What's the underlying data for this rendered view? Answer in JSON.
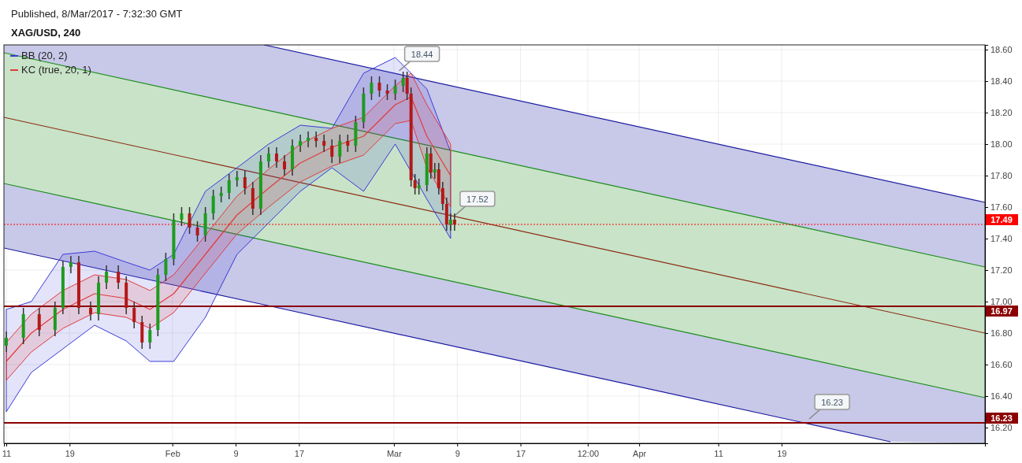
{
  "chart_data": {
    "type": "candlestick",
    "title": "XAG/USD, 240",
    "annotations": [
      "Published, 8/Mar/2017 - 7:32:30 GMT",
      {
        "text": "18.44",
        "x": "2017-03-01T04:00",
        "y": 18.44
      },
      {
        "text": "17.52",
        "x": "2017-03-08T04:00",
        "y": 17.52
      },
      {
        "text": "16.23",
        "x": "2017-04-22T00:00",
        "y": 16.23
      }
    ],
    "x": [
      "2017-01-11T00:00",
      "2017-01-13T04:00",
      "2017-01-15T04:00",
      "2017-01-17T04:00",
      "2017-01-18T04:00",
      "2017-01-19T04:00",
      "2017-01-20T04:00",
      "2017-01-21T16:00",
      "2017-01-22T16:00",
      "2017-01-23T16:00",
      "2017-01-25T04:00",
      "2017-01-26T04:00",
      "2017-01-27T04:00",
      "2017-01-28T04:00",
      "2017-01-29T04:00",
      "2017-01-30T04:00",
      "2017-01-31T04:00",
      "2017-02-01T04:00",
      "2017-02-02T04:00",
      "2017-02-03T04:00",
      "2017-02-04T04:00",
      "2017-02-05T04:00",
      "2017-02-06T04:00",
      "2017-02-07T04:00",
      "2017-02-08T04:00",
      "2017-02-09T04:00",
      "2017-02-10T04:00",
      "2017-02-11T04:00",
      "2017-02-12T04:00",
      "2017-02-13T04:00",
      "2017-02-14T04:00",
      "2017-02-15T04:00",
      "2017-02-16T04:00",
      "2017-02-17T04:00",
      "2017-02-18T04:00",
      "2017-02-19T04:00",
      "2017-02-20T04:00",
      "2017-02-21T04:00",
      "2017-02-22T04:00",
      "2017-02-23T04:00",
      "2017-02-24T04:00",
      "2017-02-25T04:00",
      "2017-02-26T04:00",
      "2017-02-27T04:00",
      "2017-02-28T04:00",
      "2017-03-01T04:00",
      "2017-03-02T04:00",
      "2017-03-02T16:00",
      "2017-03-03T04:00",
      "2017-03-03T16:00",
      "2017-03-04T04:00",
      "2017-03-05T04:00",
      "2017-03-05T16:00",
      "2017-03-06T04:00",
      "2017-03-06T16:00",
      "2017-03-07T04:00",
      "2017-03-07T16:00",
      "2017-03-08T04:00",
      "2017-03-08T16:00"
    ],
    "ohlc": [
      [
        16.72,
        16.81,
        16.68,
        16.77
      ],
      [
        16.77,
        16.96,
        16.73,
        16.92
      ],
      [
        16.92,
        16.96,
        16.78,
        16.82
      ],
      [
        16.82,
        17.0,
        16.78,
        16.96
      ],
      [
        16.96,
        17.26,
        16.92,
        17.22
      ],
      [
        17.22,
        17.29,
        17.18,
        17.25
      ],
      [
        17.25,
        17.29,
        16.92,
        16.96
      ],
      [
        16.96,
        17.0,
        16.88,
        16.92
      ],
      [
        16.92,
        17.16,
        16.88,
        17.12
      ],
      [
        17.12,
        17.23,
        17.08,
        17.19
      ],
      [
        17.19,
        17.23,
        17.08,
        17.12
      ],
      [
        17.12,
        17.16,
        16.92,
        16.96
      ],
      [
        16.96,
        17.0,
        16.83,
        16.87
      ],
      [
        16.87,
        16.91,
        16.7,
        16.74
      ],
      [
        16.74,
        16.86,
        16.7,
        16.82
      ],
      [
        16.82,
        17.21,
        16.78,
        17.17
      ],
      [
        17.17,
        17.31,
        17.13,
        17.27
      ],
      [
        17.27,
        17.56,
        17.23,
        17.52
      ],
      [
        17.52,
        17.6,
        17.48,
        17.56
      ],
      [
        17.56,
        17.6,
        17.43,
        17.47
      ],
      [
        17.47,
        17.51,
        17.38,
        17.42
      ],
      [
        17.42,
        17.6,
        17.38,
        17.56
      ],
      [
        17.56,
        17.71,
        17.52,
        17.67
      ],
      [
        17.67,
        17.73,
        17.63,
        17.69
      ],
      [
        17.69,
        17.81,
        17.65,
        17.77
      ],
      [
        17.77,
        17.83,
        17.73,
        17.79
      ],
      [
        17.79,
        17.83,
        17.68,
        17.72
      ],
      [
        17.72,
        17.76,
        17.55,
        17.59
      ],
      [
        17.59,
        17.93,
        17.55,
        17.89
      ],
      [
        17.89,
        17.98,
        17.85,
        17.94
      ],
      [
        17.94,
        17.98,
        17.85,
        17.89
      ],
      [
        17.89,
        17.93,
        17.8,
        17.84
      ],
      [
        17.84,
        18.03,
        17.8,
        17.99
      ],
      [
        17.99,
        18.06,
        17.95,
        18.02
      ],
      [
        18.02,
        18.08,
        17.98,
        18.04
      ],
      [
        18.04,
        18.08,
        17.98,
        18.02
      ],
      [
        18.02,
        18.06,
        17.95,
        17.99
      ],
      [
        17.99,
        18.03,
        17.88,
        17.92
      ],
      [
        17.92,
        18.06,
        17.88,
        18.02
      ],
      [
        18.02,
        18.06,
        17.95,
        17.99
      ],
      [
        17.99,
        18.18,
        17.95,
        18.14
      ],
      [
        18.14,
        18.36,
        18.1,
        18.32
      ],
      [
        18.32,
        18.43,
        18.28,
        18.39
      ],
      [
        18.39,
        18.43,
        18.3,
        18.34
      ],
      [
        18.34,
        18.38,
        18.28,
        18.32
      ],
      [
        18.32,
        18.41,
        18.28,
        18.37
      ],
      [
        18.37,
        18.46,
        18.33,
        18.42
      ],
      [
        18.42,
        18.46,
        18.28,
        18.32
      ],
      [
        18.32,
        18.36,
        17.73,
        17.77
      ],
      [
        17.77,
        17.81,
        17.68,
        17.72
      ],
      [
        17.72,
        17.78,
        17.68,
        17.74
      ],
      [
        17.74,
        17.98,
        17.7,
        17.94
      ],
      [
        17.94,
        17.98,
        17.78,
        17.82
      ],
      [
        17.82,
        17.88,
        17.78,
        17.84
      ],
      [
        17.84,
        17.88,
        17.68,
        17.72
      ],
      [
        17.72,
        17.76,
        17.58,
        17.62
      ],
      [
        17.62,
        17.66,
        17.45,
        17.49
      ],
      [
        17.49,
        17.56,
        17.45,
        17.52
      ],
      [
        17.52,
        17.56,
        17.45,
        17.49
      ]
    ],
    "series": [
      {
        "type": "line",
        "color": "#1a1aa0",
        "x": [
          "2017-02-12T14:00",
          "2017-05-14T17:00"
        ],
        "values": [
          18.63,
          17.63
        ]
      },
      {
        "type": "line",
        "color": "#1a1aa0",
        "x": [
          "2017-01-10T17:00",
          "2017-02-12T14:00",
          "2017-05-02T18:00",
          "2017-05-14T17:00"
        ],
        "values": [
          17.34,
          16.98,
          16.11,
          null
        ],
        "lower": [
          17.34,
          16.98,
          16.11,
          16.1
        ],
        "upper": [
          18.63,
          18.63,
          17.76,
          17.63
        ]
      },
      {
        "type": "line",
        "color": "#1a8c1a",
        "x": [
          "2017-01-10T17:00",
          "2017-05-14T17:00"
        ],
        "values": [
          18.58,
          17.22
        ],
        "lower": [
          17.75,
          16.39
        ],
        "upper": [
          18.58,
          17.22
        ]
      },
      {
        "type": "line",
        "color": "#1a8c1a",
        "x": [
          "2017-01-10T17:00",
          "2017-05-14T17:00"
        ],
        "values": [
          17.75,
          16.39
        ]
      },
      {
        "type": "line",
        "color": "#8b2a10",
        "x": [
          "2017-01-10T17:00",
          "2017-05-14T17:00"
        ],
        "values": [
          18.17,
          16.8
        ]
      },
      {
        "type": "line",
        "name": "BB (20, 2)",
        "color": "#3b3bd9",
        "x": [
          "2017-01-11T00:00",
          "2017-01-14T04:00",
          "2017-01-18T04:00",
          "2017-01-22T04:00",
          "2017-01-26T04:00",
          "2017-01-29T04:00",
          "2017-02-01T04:00",
          "2017-02-05T04:00",
          "2017-02-09T04:00",
          "2017-02-13T04:00",
          "2017-02-17T04:00",
          "2017-02-21T04:00",
          "2017-02-25T04:00",
          "2017-03-01T04:00",
          "2017-03-05T04:00",
          "2017-03-08T04:00"
        ],
        "values": [
          null,
          null,
          null,
          null,
          null,
          null,
          null,
          null,
          null,
          null,
          null,
          null,
          null,
          null,
          null,
          null
        ],
        "lower": [
          16.3,
          16.55,
          16.7,
          16.85,
          16.75,
          16.62,
          16.62,
          16.9,
          17.3,
          17.5,
          17.7,
          17.85,
          17.7,
          18.0,
          17.65,
          17.4
        ],
        "upper": [
          16.95,
          17.0,
          17.3,
          17.32,
          17.25,
          17.2,
          17.3,
          17.7,
          17.85,
          18.0,
          18.12,
          18.1,
          18.45,
          18.55,
          18.35,
          17.95
        ]
      },
      {
        "type": "line",
        "name": "KC (true, 20, 1)",
        "color": "#e03c3c",
        "x": [
          "2017-01-11T00:00",
          "2017-01-14T04:00",
          "2017-01-18T04:00",
          "2017-01-22T04:00",
          "2017-01-26T04:00",
          "2017-01-29T04:00",
          "2017-02-01T04:00",
          "2017-02-05T04:00",
          "2017-02-09T04:00",
          "2017-02-13T04:00",
          "2017-02-17T04:00",
          "2017-02-21T04:00",
          "2017-02-25T04:00",
          "2017-03-01T04:00",
          "2017-03-03T04:00",
          "2017-03-05T04:00",
          "2017-03-08T04:00"
        ],
        "values": [
          16.62,
          16.8,
          16.95,
          17.05,
          17.02,
          16.95,
          17.05,
          17.3,
          17.55,
          17.72,
          17.88,
          17.98,
          18.05,
          18.25,
          18.3,
          18.05,
          17.8
        ],
        "lower": [
          16.5,
          16.68,
          16.83,
          16.93,
          16.9,
          16.83,
          16.93,
          17.18,
          17.43,
          17.6,
          17.76,
          17.86,
          17.93,
          18.13,
          18.15,
          17.85,
          17.6
        ],
        "upper": [
          16.74,
          16.92,
          17.07,
          17.17,
          17.14,
          17.07,
          17.17,
          17.42,
          17.67,
          17.84,
          18.0,
          18.1,
          18.17,
          18.37,
          18.45,
          18.25,
          18.0
        ]
      }
    ],
    "ref_lines": [
      {
        "axis": "y",
        "value": 17.49,
        "label": "17.49",
        "color": "#ff0000",
        "line_style": "dotted"
      },
      {
        "axis": "y",
        "value": 16.97,
        "label": "16.97",
        "color": "#8b0000",
        "line_style": "solid"
      },
      {
        "axis": "y",
        "value": 16.23,
        "label": "16.23",
        "color": "#8b0000",
        "line_style": "solid"
      }
    ],
    "xlim": [
      "2017-01-10T17:00",
      "2017-05-14T17:00"
    ],
    "xticks": [
      {
        "value": "2017-01-11",
        "label": "11"
      },
      {
        "value": "2017-01-19",
        "label": "19"
      },
      {
        "value": "2017-02-01",
        "label": "Feb"
      },
      {
        "value": "2017-02-09",
        "label": "9"
      },
      {
        "value": "2017-02-17",
        "label": "17"
      },
      {
        "value": "2017-03-01",
        "label": "Mar"
      },
      {
        "value": "2017-03-09",
        "label": "9"
      },
      {
        "value": "2017-03-17",
        "label": "17"
      },
      {
        "value": "2017-03-25T12:00",
        "label": "12:00"
      },
      {
        "value": "2017-04-01",
        "label": "Apr"
      },
      {
        "value": "2017-04-11",
        "label": "11"
      },
      {
        "value": "2017-04-19",
        "label": "19"
      }
    ],
    "ylim": [
      16.1,
      18.63
    ],
    "yticks": [
      {
        "value": 16.2,
        "label": "16.20"
      },
      {
        "value": 16.4,
        "label": "16.40"
      },
      {
        "value": 16.6,
        "label": "16.60"
      },
      {
        "value": 16.8,
        "label": "16.80"
      },
      {
        "value": 17,
        "label": "17.00"
      },
      {
        "value": 17.2,
        "label": "17.20"
      },
      {
        "value": 17.4,
        "label": "17.40"
      },
      {
        "value": 17.6,
        "label": "17.60"
      },
      {
        "value": 17.8,
        "label": "17.80"
      },
      {
        "value": 18,
        "label": "18.00"
      },
      {
        "value": 18.2,
        "label": "18.20"
      },
      {
        "value": 18.4,
        "label": "18.40"
      },
      {
        "value": 18.6,
        "label": "18.60"
      }
    ],
    "grid": true,
    "legend": "top left"
  }
}
